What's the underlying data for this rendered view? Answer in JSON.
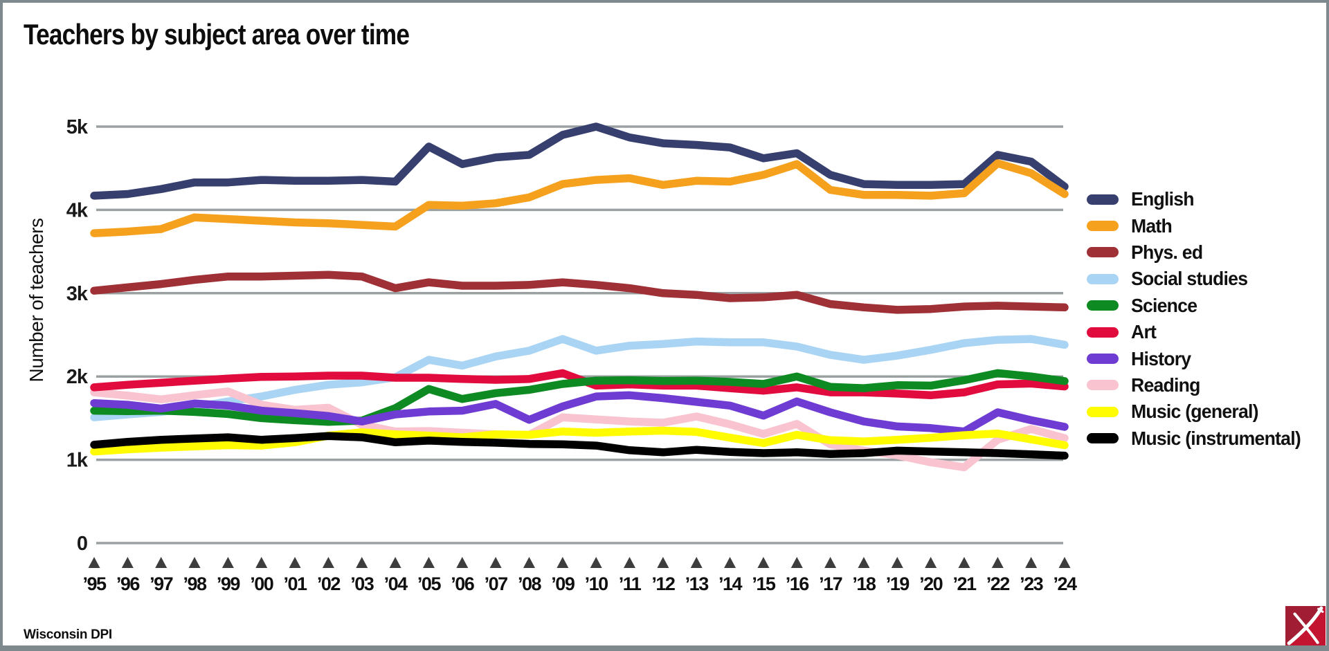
{
  "title": "Teachers by subject area over time",
  "source": "Wisconsin DPI",
  "chart_data": {
    "type": "line",
    "title": "Teachers by subject area over time",
    "ylabel": "Number of teachers",
    "xlabel": "",
    "ylim": [
      0,
      5200
    ],
    "grid": true,
    "legend_position": "right",
    "gridline_color": "#9ba1a2",
    "tick_marker_color": "#3d3d3d",
    "yticks": [
      {
        "value": 0,
        "label": "0"
      },
      {
        "value": 1000,
        "label": "1k"
      },
      {
        "value": 2000,
        "label": "2k"
      },
      {
        "value": 3000,
        "label": "3k"
      },
      {
        "value": 4000,
        "label": "4k"
      },
      {
        "value": 5000,
        "label": "5k"
      }
    ],
    "x_labels": [
      "’95",
      "’96",
      "’97",
      "’98",
      "’99",
      "’00",
      "’01",
      "’02",
      "’03",
      "’04",
      "’05",
      "’06",
      "’07",
      "’08",
      "’09",
      "’10",
      "’11",
      "’12",
      "’13",
      "’14",
      "’15",
      "’16",
      "’17",
      "’18",
      "’19",
      "’20",
      "’21",
      "’22",
      "’23",
      "’24"
    ],
    "draw_order": [
      0,
      1,
      2,
      3,
      7,
      5,
      4,
      6,
      8,
      9
    ],
    "series": [
      {
        "name": "English",
        "color": "#363f6d",
        "values": [
          4170,
          4190,
          4250,
          4330,
          4330,
          4360,
          4350,
          4350,
          4360,
          4340,
          4760,
          4550,
          4630,
          4660,
          4900,
          5000,
          4870,
          4800,
          4780,
          4750,
          4620,
          4680,
          4420,
          4310,
          4300,
          4300,
          4310,
          4660,
          4580,
          4280
        ]
      },
      {
        "name": "Math",
        "color": "#f5a11d",
        "values": [
          3720,
          3740,
          3770,
          3910,
          3890,
          3870,
          3850,
          3840,
          3820,
          3800,
          4060,
          4050,
          4080,
          4150,
          4310,
          4360,
          4380,
          4300,
          4350,
          4340,
          4420,
          4550,
          4240,
          4180,
          4180,
          4170,
          4200,
          4560,
          4440,
          4190
        ]
      },
      {
        "name": "Phys. ed",
        "color": "#9e3036",
        "values": [
          3030,
          3070,
          3110,
          3160,
          3200,
          3200,
          3210,
          3220,
          3200,
          3060,
          3130,
          3090,
          3090,
          3100,
          3130,
          3100,
          3060,
          3000,
          2980,
          2940,
          2950,
          2980,
          2870,
          2830,
          2800,
          2810,
          2840,
          2850,
          2840,
          2830
        ]
      },
      {
        "name": "Social studies",
        "color": "#a9d4f4",
        "values": [
          1510,
          1545,
          1575,
          1630,
          1700,
          1760,
          1840,
          1900,
          1930,
          1990,
          2200,
          2130,
          2240,
          2310,
          2450,
          2310,
          2370,
          2390,
          2420,
          2410,
          2410,
          2360,
          2260,
          2200,
          2250,
          2320,
          2400,
          2440,
          2450,
          2380
        ]
      },
      {
        "name": "Science",
        "color": "#0d8b22",
        "values": [
          1590,
          1585,
          1590,
          1575,
          1550,
          1500,
          1475,
          1455,
          1470,
          1620,
          1850,
          1730,
          1800,
          1840,
          1910,
          1950,
          1955,
          1945,
          1950,
          1935,
          1910,
          2000,
          1875,
          1860,
          1895,
          1890,
          1955,
          2040,
          2000,
          1945
        ]
      },
      {
        "name": "Art",
        "color": "#e20b3d",
        "values": [
          1870,
          1900,
          1925,
          1950,
          1975,
          1995,
          2000,
          2010,
          2010,
          1985,
          1985,
          1970,
          1960,
          1970,
          2040,
          1890,
          1905,
          1890,
          1890,
          1860,
          1830,
          1870,
          1810,
          1810,
          1795,
          1775,
          1810,
          1905,
          1915,
          1880
        ]
      },
      {
        "name": "History",
        "color": "#6e3cd2",
        "values": [
          1680,
          1660,
          1615,
          1675,
          1650,
          1590,
          1560,
          1525,
          1460,
          1545,
          1580,
          1590,
          1670,
          1480,
          1640,
          1760,
          1775,
          1740,
          1695,
          1650,
          1530,
          1700,
          1570,
          1460,
          1400,
          1380,
          1340,
          1570,
          1475,
          1395
        ]
      },
      {
        "name": "Reading",
        "color": "#f9c4cf",
        "values": [
          1810,
          1770,
          1725,
          1775,
          1820,
          1660,
          1600,
          1625,
          1420,
          1340,
          1345,
          1325,
          1305,
          1300,
          1510,
          1485,
          1460,
          1445,
          1520,
          1425,
          1310,
          1430,
          1185,
          1110,
          1055,
          970,
          910,
          1240,
          1370,
          1260
        ]
      },
      {
        "name": "Music (general)",
        "color": "#fffb00",
        "values": [
          1100,
          1125,
          1145,
          1160,
          1175,
          1170,
          1210,
          1290,
          1330,
          1305,
          1290,
          1270,
          1305,
          1300,
          1340,
          1325,
          1340,
          1350,
          1335,
          1265,
          1200,
          1300,
          1235,
          1220,
          1240,
          1265,
          1295,
          1315,
          1245,
          1175
        ]
      },
      {
        "name": "Music (instrumental)",
        "color": "#000000",
        "values": [
          1180,
          1215,
          1240,
          1255,
          1270,
          1240,
          1260,
          1285,
          1270,
          1210,
          1230,
          1215,
          1205,
          1190,
          1185,
          1170,
          1115,
          1090,
          1120,
          1095,
          1080,
          1090,
          1070,
          1080,
          1110,
          1100,
          1090,
          1080,
          1065,
          1050
        ]
      }
    ]
  },
  "logo": {
    "name": "wisconsin-dpi-logo",
    "dark_red": "#a01d33",
    "bright_red": "#c31432"
  }
}
